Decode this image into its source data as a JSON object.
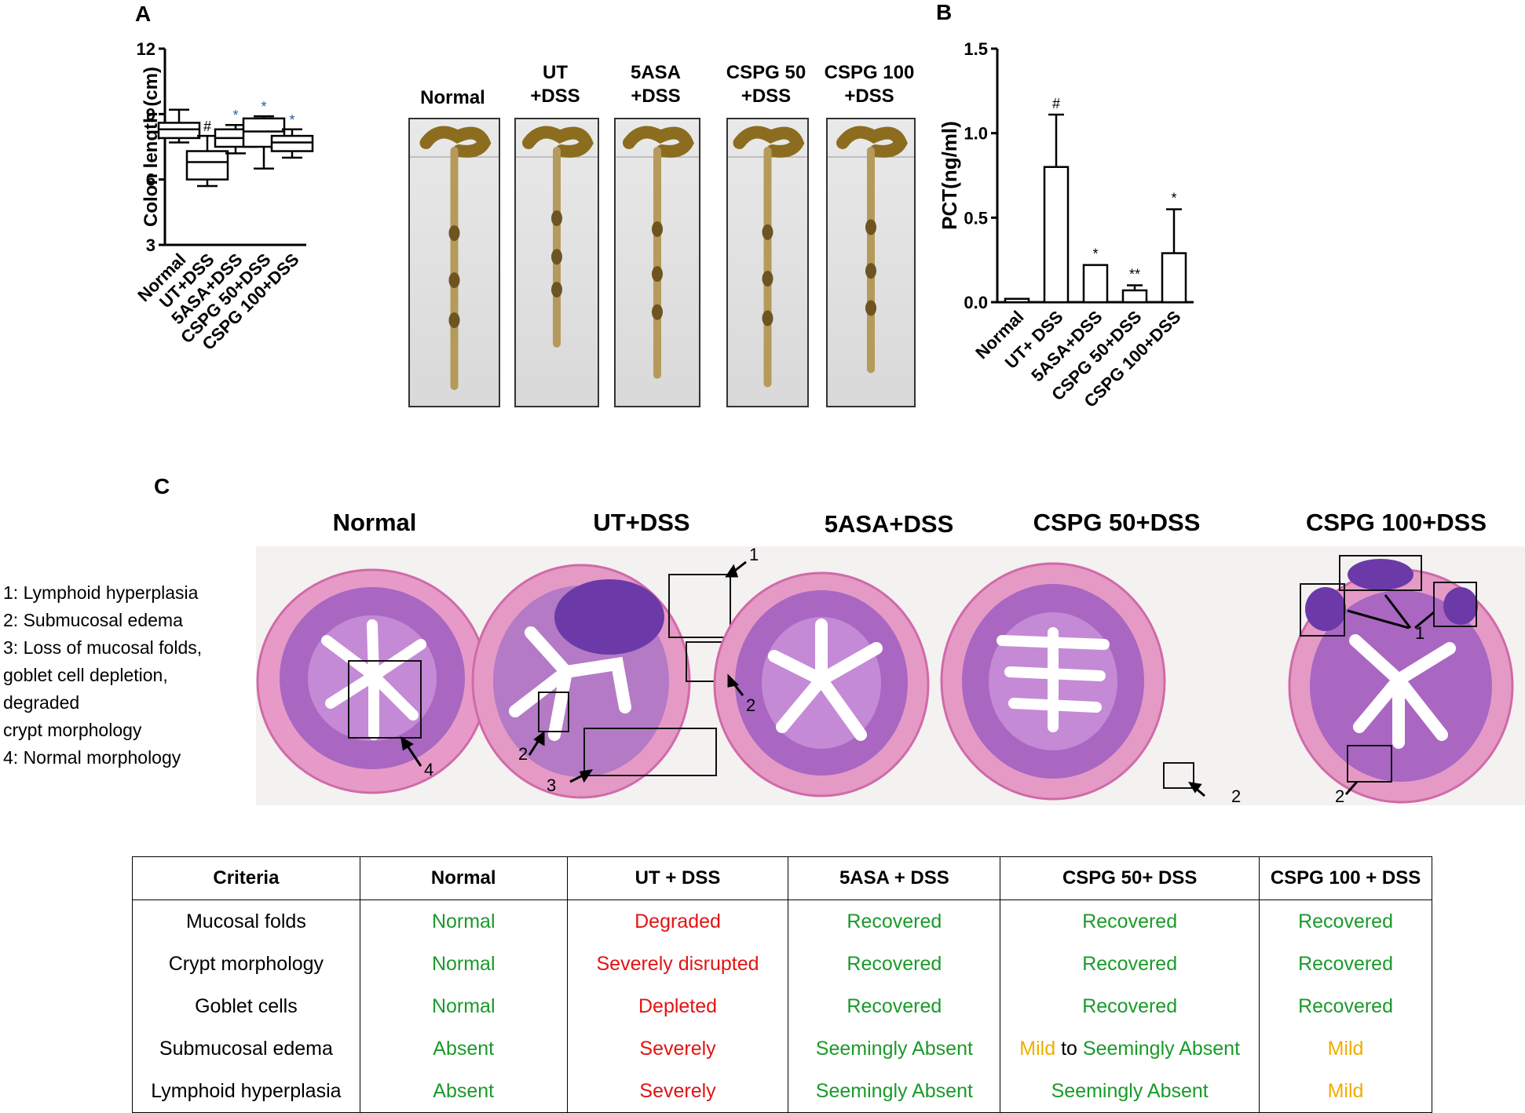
{
  "panels": {
    "a": "A",
    "b": "B",
    "c": "C"
  },
  "chart_data": [
    {
      "type": "box",
      "ylabel": "Colon length (cm)",
      "ylim": [
        3,
        12
      ],
      "yticks": [
        "3",
        "6",
        "9",
        "12"
      ],
      "categories": [
        "Normal",
        "UT+DSS",
        "5ASA+DSS",
        "CSPG 50+DSS",
        "CSPG 100+DSS"
      ],
      "boxes": [
        {
          "min": 7.7,
          "q1": 7.9,
          "median": 8.3,
          "q3": 8.6,
          "max": 9.2,
          "mark": ""
        },
        {
          "min": 5.7,
          "q1": 6.0,
          "median": 6.8,
          "q3": 7.3,
          "max": 8.0,
          "mark": "#"
        },
        {
          "min": 7.2,
          "q1": 7.5,
          "median": 7.9,
          "q3": 8.3,
          "max": 8.5,
          "mark": "*"
        },
        {
          "min": 6.5,
          "q1": 7.5,
          "median": 8.2,
          "q3": 8.8,
          "max": 8.9,
          "mark": "*"
        },
        {
          "min": 7.0,
          "q1": 7.3,
          "median": 7.7,
          "q3": 8.0,
          "max": 8.3,
          "mark": "*"
        }
      ]
    },
    {
      "type": "bar",
      "ylabel": "PCT(ng/ml)",
      "ylim": [
        0,
        1.5
      ],
      "yticks": [
        "0.0",
        "0.5",
        "1.0",
        "1.5"
      ],
      "categories": [
        "Normal",
        "UT+ DSS",
        "5ASA+DSS",
        "CSPG 50+DSS",
        "CSPG 100+DSS"
      ],
      "values": [
        0.02,
        0.8,
        0.22,
        0.07,
        0.29
      ],
      "errors": [
        0.0,
        0.31,
        0.0,
        0.03,
        0.26
      ],
      "marks": [
        "",
        "#",
        "*",
        "**",
        "*"
      ]
    }
  ],
  "colon_photos": [
    {
      "line1": "",
      "line2": "Normal",
      "length": 8.3
    },
    {
      "line1": "UT",
      "line2": "+DSS",
      "length": 6.8
    },
    {
      "line1": "5ASA",
      "line2": "+DSS",
      "length": 7.9
    },
    {
      "line1": "CSPG 50",
      "line2": "+DSS",
      "length": 8.2
    },
    {
      "line1": "CSPG 100",
      "line2": "+DSS",
      "length": 7.7
    }
  ],
  "histology": {
    "titles": [
      "Normal",
      "UT+DSS",
      "5ASA+DSS",
      "CSPG 50+DSS",
      "CSPG 100+DSS"
    ],
    "legend": [
      "1: Lymphoid hyperplasia",
      "2: Submucosal edema",
      "3: Loss of mucosal folds,",
      "goblet cell depletion,",
      "degraded",
      "crypt morphology",
      "4: Normal morphology"
    ],
    "markers": [
      "1",
      "2",
      "3",
      "4"
    ]
  },
  "table": {
    "headers": [
      "Criteria",
      "Normal",
      "UT + DSS",
      "5ASA + DSS",
      "CSPG 50+ DSS",
      "CSPG 100 + DSS"
    ],
    "rows": [
      [
        "Mucosal folds",
        "Normal",
        "Degraded",
        "Recovered",
        "Recovered",
        "Recovered"
      ],
      [
        "Crypt morphology",
        "Normal",
        "Severely disrupted",
        "Recovered",
        "Recovered",
        "Recovered"
      ],
      [
        "Goblet cells",
        "Normal",
        "Depleted",
        "Recovered",
        "Recovered",
        "Recovered"
      ],
      [
        "Submucosal edema",
        "Absent",
        "Severely",
        "Seemingly Absent",
        "Mild",
        "Mild"
      ],
      [
        "Lymphoid hyperplasia",
        "Absent",
        "Severely",
        "Seemingly Absent",
        "Seemingly Absent",
        "Mild"
      ]
    ],
    "connector": "to",
    "mixed_tail": "Seemingly Absent",
    "colors": {
      "good": "#1a9a2a",
      "bad": "#e11414",
      "mild": "#f0ad00"
    }
  }
}
